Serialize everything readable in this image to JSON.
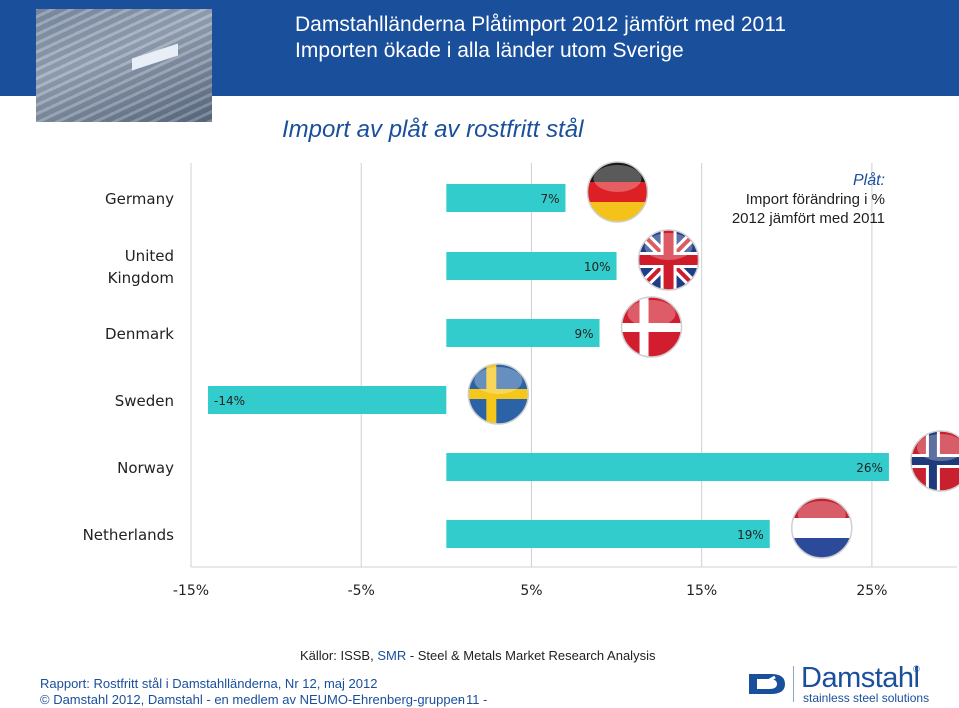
{
  "header": {
    "title": "Damstahlländerna  Plåtimport 2012 jämfört med 2011",
    "subtitle": "Importen ökade i alla länder utom Sverige"
  },
  "slide_title": "Import av plåt av rostfritt stål",
  "legend": {
    "title": "Plåt:",
    "line1": "Import  förändring i %",
    "line2": "2012 jämfört med 2011"
  },
  "source": {
    "prefix": "Källor: ISSB, ",
    "smr": "SMR",
    "rest": " - Steel & Metals Market Research Analysis"
  },
  "footer": {
    "report": "Rapport: Rostfritt stål i Damstahlländerna, Nr 12, maj 2012",
    "copyright": "© Damstahl 2012, Damstahl - en medlem av NEUMO-Ehrenberg-gruppen",
    "page": "- 11 -"
  },
  "logo": {
    "brand": "Damstahl",
    "registered": "®",
    "tagline": "stainless steel solutions"
  },
  "colors": {
    "bar": "#33cccc",
    "header": "#1a4f9c",
    "accent_text": "#1a4f9c"
  },
  "chart_data": {
    "type": "bar",
    "orientation": "horizontal",
    "categories": [
      "Germany",
      "United Kingdom",
      "Denmark",
      "Sweden",
      "Norway",
      "Netherlands"
    ],
    "category_lines": [
      [
        "Germany"
      ],
      [
        "United",
        "Kingdom"
      ],
      [
        "Denmark"
      ],
      [
        "Sweden"
      ],
      [
        "Norway"
      ],
      [
        "Netherlands"
      ]
    ],
    "values": [
      7,
      10,
      9,
      -14,
      26,
      19
    ],
    "data_labels": [
      "7%",
      "10%",
      "9%",
      "-14%",
      "26%",
      "19%"
    ],
    "flags": [
      "germany-flag",
      "united-kingdom-flag",
      "denmark-flag",
      "sweden-flag",
      "norway-flag",
      "netherlands-flag"
    ],
    "xlim": [
      -15,
      30
    ],
    "x_ticks": [
      -15,
      -5,
      5,
      15,
      25
    ],
    "x_tick_labels": [
      "-15%",
      "-5%",
      "5%",
      "15%",
      "25%"
    ],
    "grid": "vertical",
    "legend": "top-right"
  }
}
